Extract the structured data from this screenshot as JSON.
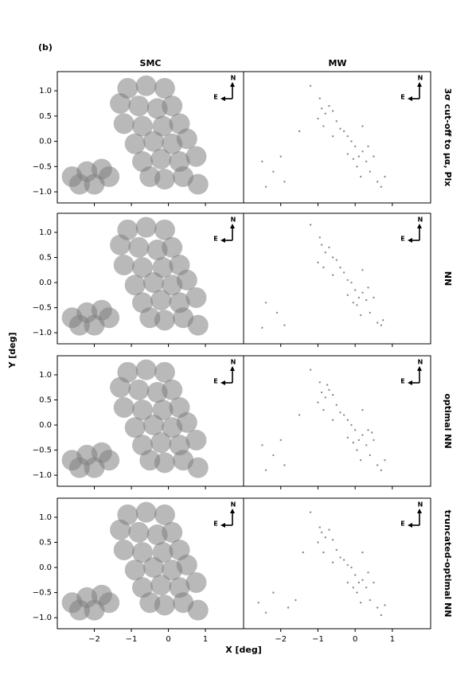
{
  "panel_label": "(b)",
  "column_titles": [
    "SMC",
    "MW"
  ],
  "row_titles": [
    "3σ cut-off to μα, Plx",
    "NN",
    "optimal NN",
    "truncated-optimal NN"
  ],
  "xlabel": "X [deg]",
  "ylabel": "Y [deg]",
  "compass": {
    "north": "N",
    "east": "E"
  },
  "chart_data": [
    {
      "type": "scatter",
      "color": "#808080",
      "alpha": 0.55,
      "x": [
        -1.1,
        -0.6,
        -0.1,
        -1.3,
        -0.8,
        -0.3,
        0.1,
        -1.2,
        -0.7,
        -0.15,
        0.3,
        -0.9,
        -0.4,
        0.1,
        0.5,
        -0.7,
        -0.2,
        0.3,
        0.75,
        -0.1,
        0.4,
        0.8,
        -0.5,
        -2.6,
        -2.2,
        -1.8,
        -2.4,
        -2.0,
        -1.6
      ],
      "y": [
        1.05,
        1.1,
        1.05,
        0.75,
        0.7,
        0.65,
        0.7,
        0.35,
        0.3,
        0.3,
        0.35,
        -0.05,
        0.0,
        -0.05,
        0.05,
        -0.4,
        -0.35,
        -0.4,
        -0.3,
        -0.75,
        -0.7,
        -0.85,
        -0.7,
        -0.7,
        -0.6,
        -0.55,
        -0.85,
        -0.85,
        -0.7
      ],
      "xlim": [
        -3.0,
        2.03
      ],
      "ylim": [
        -1.22,
        1.38
      ],
      "xticks": [
        {
          "value": -2,
          "label": "−2"
        },
        {
          "value": -1,
          "label": "−1"
        },
        0,
        1
      ],
      "yticks": [
        {
          "value": -1,
          "label": "−1.0"
        },
        {
          "value": -0.5,
          "label": "−0.5"
        },
        {
          "value": 0,
          "label": "0.0"
        },
        0.5,
        {
          "value": 1,
          "label": "1.0"
        }
      ]
    },
    {
      "type": "scatter",
      "color": "#808080",
      "alpha": 0.9,
      "x": [
        -0.9,
        -0.8,
        -0.7,
        -1.0,
        -0.6,
        -0.85,
        -0.5,
        -0.3,
        -0.2,
        0.0,
        0.1,
        0.2,
        -0.1,
        0.05,
        0.3,
        0.4,
        0.5,
        0.6,
        0.7,
        -0.4,
        -0.6,
        -0.2,
        0.15,
        0.35,
        -0.95,
        -1.2,
        -1.5,
        -2.5,
        -2.2,
        -2.0,
        -2.4,
        -1.9,
        0.8,
        0.2,
        -0.05
      ],
      "y": [
        0.65,
        0.55,
        0.7,
        0.45,
        0.6,
        0.3,
        0.4,
        0.2,
        0.1,
        -0.1,
        -0.3,
        -0.2,
        0.0,
        -0.5,
        -0.4,
        -0.6,
        -0.3,
        -0.8,
        -0.9,
        0.25,
        0.1,
        -0.25,
        -0.7,
        -0.1,
        0.85,
        1.1,
        0.2,
        -0.4,
        -0.6,
        -0.3,
        -0.9,
        -0.8,
        -0.7,
        0.3,
        -0.35
      ],
      "xlim": [
        -3.0,
        2.03
      ],
      "ylim": [
        -1.22,
        1.38
      ],
      "xticks": [
        {
          "value": -2,
          "label": "−2"
        },
        {
          "value": -1,
          "label": "−1"
        },
        0,
        1
      ],
      "yticks": [
        {
          "value": -1,
          "label": "−1.0"
        },
        {
          "value": -0.5,
          "label": "−0.5"
        },
        {
          "value": 0,
          "label": "0.0"
        },
        0.5,
        {
          "value": 1,
          "label": "1.0"
        }
      ]
    },
    {
      "type": "scatter",
      "color": "#808080",
      "alpha": 0.55,
      "x": [
        -1.1,
        -0.6,
        -0.1,
        -1.3,
        -0.8,
        -0.3,
        0.1,
        -1.2,
        -0.7,
        -0.15,
        0.3,
        -0.9,
        -0.4,
        0.1,
        0.5,
        -0.7,
        -0.2,
        0.3,
        0.75,
        -0.1,
        0.4,
        0.8,
        -0.5,
        -2.6,
        -2.2,
        -1.8,
        -2.4,
        -2.0,
        -1.6
      ],
      "y": [
        1.05,
        1.1,
        1.05,
        0.75,
        0.7,
        0.65,
        0.7,
        0.35,
        0.3,
        0.3,
        0.35,
        -0.05,
        0.0,
        -0.05,
        0.05,
        -0.4,
        -0.35,
        -0.4,
        -0.3,
        -0.75,
        -0.7,
        -0.85,
        -0.7,
        -0.7,
        -0.6,
        -0.55,
        -0.85,
        -0.85,
        -0.7
      ],
      "xlim": [
        -3.0,
        2.03
      ],
      "ylim": [
        -1.22,
        1.38
      ],
      "xticks": [
        {
          "value": -2,
          "label": "−2"
        },
        {
          "value": -1,
          "label": "−1"
        },
        0,
        1
      ],
      "yticks": [
        {
          "value": -1,
          "label": "−1.0"
        },
        {
          "value": -0.5,
          "label": "−0.5"
        },
        {
          "value": 0,
          "label": "0.0"
        },
        0.5,
        {
          "value": 1,
          "label": "1.0"
        }
      ]
    },
    {
      "type": "scatter",
      "color": "#808080",
      "alpha": 0.9,
      "x": [
        -0.9,
        -0.8,
        -0.7,
        -1.0,
        -0.6,
        -0.85,
        -0.5,
        -0.3,
        -0.2,
        0.0,
        0.1,
        0.2,
        -0.1,
        0.05,
        0.3,
        0.4,
        0.5,
        0.6,
        0.7,
        -0.4,
        -0.6,
        -0.2,
        0.15,
        0.35,
        -0.95,
        -1.2,
        -2.4,
        -2.1,
        -2.5,
        -1.9,
        0.75,
        0.2,
        -0.05
      ],
      "y": [
        0.75,
        0.6,
        0.7,
        0.4,
        0.5,
        0.3,
        0.45,
        0.2,
        0.05,
        -0.15,
        -0.3,
        -0.2,
        0.0,
        -0.45,
        -0.35,
        -0.6,
        -0.3,
        -0.8,
        -0.85,
        0.3,
        0.15,
        -0.25,
        -0.65,
        -0.1,
        0.9,
        1.15,
        -0.4,
        -0.6,
        -0.9,
        -0.85,
        -0.75,
        0.25,
        -0.4
      ],
      "xlim": [
        -3.0,
        2.03
      ],
      "ylim": [
        -1.22,
        1.38
      ],
      "xticks": [
        {
          "value": -2,
          "label": "−2"
        },
        {
          "value": -1,
          "label": "−1"
        },
        0,
        1
      ],
      "yticks": [
        {
          "value": -1,
          "label": "−1.0"
        },
        {
          "value": -0.5,
          "label": "−0.5"
        },
        {
          "value": 0,
          "label": "0.0"
        },
        0.5,
        {
          "value": 1,
          "label": "1.0"
        }
      ]
    },
    {
      "type": "scatter",
      "color": "#808080",
      "alpha": 0.55,
      "x": [
        -1.1,
        -0.6,
        -0.1,
        -1.3,
        -0.8,
        -0.3,
        0.1,
        -1.2,
        -0.7,
        -0.15,
        0.3,
        -0.9,
        -0.4,
        0.1,
        0.5,
        -0.7,
        -0.2,
        0.3,
        0.75,
        -0.1,
        0.4,
        0.8,
        -0.5,
        -2.6,
        -2.2,
        -1.8,
        -2.4,
        -2.0,
        -1.6
      ],
      "y": [
        1.05,
        1.1,
        1.05,
        0.75,
        0.7,
        0.65,
        0.7,
        0.35,
        0.3,
        0.3,
        0.35,
        -0.05,
        0.0,
        -0.05,
        0.05,
        -0.4,
        -0.35,
        -0.4,
        -0.3,
        -0.75,
        -0.7,
        -0.85,
        -0.7,
        -0.7,
        -0.6,
        -0.55,
        -0.85,
        -0.85,
        -0.7
      ],
      "xlim": [
        -3.0,
        2.03
      ],
      "ylim": [
        -1.22,
        1.38
      ],
      "xticks": [
        {
          "value": -2,
          "label": "−2"
        },
        {
          "value": -1,
          "label": "−1"
        },
        0,
        1
      ],
      "yticks": [
        {
          "value": -1,
          "label": "−1.0"
        },
        {
          "value": -0.5,
          "label": "−0.5"
        },
        {
          "value": 0,
          "label": "0.0"
        },
        0.5,
        {
          "value": 1,
          "label": "1.0"
        }
      ]
    },
    {
      "type": "scatter",
      "color": "#808080",
      "alpha": 0.9,
      "x": [
        -0.9,
        -0.8,
        -0.7,
        -1.0,
        -0.6,
        -0.85,
        -0.5,
        -0.3,
        -0.2,
        0.0,
        0.1,
        0.2,
        -0.1,
        0.05,
        0.3,
        0.4,
        0.5,
        0.6,
        0.7,
        -0.4,
        -0.6,
        -0.2,
        0.15,
        0.35,
        -0.95,
        -1.2,
        -1.5,
        -2.5,
        -2.2,
        -2.0,
        -2.4,
        -1.9,
        0.8,
        0.2,
        -0.05,
        -0.75,
        0.45
      ],
      "y": [
        0.65,
        0.55,
        0.7,
        0.45,
        0.6,
        0.3,
        0.4,
        0.2,
        0.1,
        -0.1,
        -0.3,
        -0.2,
        0.0,
        -0.5,
        -0.4,
        -0.6,
        -0.3,
        -0.8,
        -0.9,
        0.25,
        0.1,
        -0.25,
        -0.7,
        -0.1,
        0.85,
        1.1,
        0.2,
        -0.4,
        -0.6,
        -0.3,
        -0.9,
        -0.8,
        -0.7,
        0.3,
        -0.35,
        0.8,
        -0.15
      ],
      "xlim": [
        -3.0,
        2.03
      ],
      "ylim": [
        -1.22,
        1.38
      ],
      "xticks": [
        {
          "value": -2,
          "label": "−2"
        },
        {
          "value": -1,
          "label": "−1"
        },
        0,
        1
      ],
      "yticks": [
        {
          "value": -1,
          "label": "−1.0"
        },
        {
          "value": -0.5,
          "label": "−0.5"
        },
        {
          "value": 0,
          "label": "0.0"
        },
        0.5,
        {
          "value": 1,
          "label": "1.0"
        }
      ]
    },
    {
      "type": "scatter",
      "color": "#808080",
      "alpha": 0.55,
      "x": [
        -1.1,
        -0.6,
        -0.1,
        -1.3,
        -0.8,
        -0.3,
        0.1,
        -1.2,
        -0.7,
        -0.15,
        0.3,
        -0.9,
        -0.4,
        0.1,
        0.5,
        -0.7,
        -0.2,
        0.3,
        0.75,
        -0.1,
        0.4,
        0.8,
        -0.5,
        -2.6,
        -2.2,
        -1.8,
        -2.4,
        -2.0,
        -1.6
      ],
      "y": [
        1.05,
        1.1,
        1.05,
        0.75,
        0.7,
        0.65,
        0.7,
        0.35,
        0.3,
        0.3,
        0.35,
        -0.05,
        0.0,
        -0.05,
        0.05,
        -0.4,
        -0.35,
        -0.4,
        -0.3,
        -0.75,
        -0.7,
        -0.85,
        -0.7,
        -0.7,
        -0.6,
        -0.55,
        -0.85,
        -0.85,
        -0.7
      ],
      "xlim": [
        -3.0,
        2.03
      ],
      "ylim": [
        -1.22,
        1.38
      ],
      "xticks": [
        {
          "value": -2,
          "label": "−2"
        },
        {
          "value": -1,
          "label": "−1"
        },
        0,
        1
      ],
      "yticks": [
        {
          "value": -1,
          "label": "−1.0"
        },
        {
          "value": -0.5,
          "label": "−0.5"
        },
        {
          "value": 0,
          "label": "0.0"
        },
        0.5,
        {
          "value": 1,
          "label": "1.0"
        }
      ]
    },
    {
      "type": "scatter",
      "color": "#808080",
      "alpha": 0.9,
      "x": [
        -0.9,
        -0.8,
        -0.7,
        -1.0,
        -0.6,
        -0.85,
        -0.5,
        -0.3,
        -0.2,
        0.0,
        0.1,
        0.2,
        -0.1,
        0.05,
        0.3,
        0.4,
        0.5,
        0.6,
        0.7,
        -0.4,
        -0.6,
        -0.2,
        0.15,
        0.35,
        -0.95,
        -1.2,
        -1.4,
        -2.6,
        -2.2,
        -1.8,
        -2.4,
        -1.6,
        0.8,
        0.2,
        -0.05
      ],
      "y": [
        0.7,
        0.6,
        0.75,
        0.5,
        0.55,
        0.3,
        0.35,
        0.15,
        0.05,
        -0.15,
        -0.3,
        -0.25,
        0.0,
        -0.5,
        -0.4,
        -0.65,
        -0.3,
        -0.8,
        -0.95,
        0.2,
        0.1,
        -0.3,
        -0.7,
        -0.1,
        0.8,
        1.1,
        0.3,
        -0.7,
        -0.5,
        -0.8,
        -0.9,
        -0.65,
        -0.75,
        0.3,
        -0.4
      ],
      "xlim": [
        -3.0,
        2.03
      ],
      "ylim": [
        -1.22,
        1.38
      ],
      "xticks": [
        {
          "value": -2,
          "label": "−2"
        },
        {
          "value": -1,
          "label": "−1"
        },
        0,
        1
      ],
      "yticks": [
        {
          "value": -1,
          "label": "−1.0"
        },
        {
          "value": -0.5,
          "label": "−0.5"
        },
        {
          "value": 0,
          "label": "0.0"
        },
        0.5,
        {
          "value": 1,
          "label": "1.0"
        }
      ]
    }
  ]
}
